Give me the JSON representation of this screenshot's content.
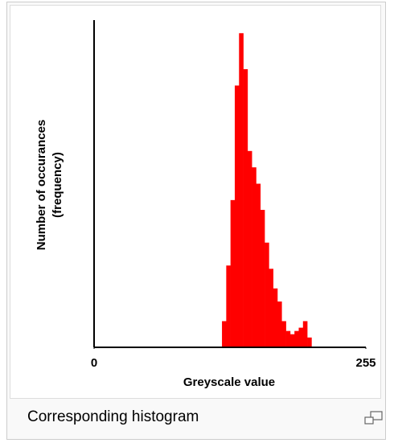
{
  "chart_data": {
    "type": "histogram",
    "xlabel": "Greyscale value",
    "ylabel": [
      "Number of occurances",
      "(frequency)"
    ],
    "bins": [
      120,
      124,
      128,
      132,
      136,
      140,
      144,
      148,
      152,
      156,
      160,
      164,
      168,
      172,
      176,
      180,
      184,
      188,
      192,
      196,
      200,
      204
    ],
    "values": [
      8,
      25,
      45,
      80,
      96,
      85,
      60,
      55,
      50,
      42,
      32,
      24,
      18,
      14,
      8,
      5,
      4,
      5,
      6,
      8,
      3
    ],
    "color": "#ff0000",
    "xlim": [
      0,
      255
    ],
    "xticks": [
      0,
      255
    ],
    "ylim": [
      0,
      100
    ],
    "grid": false
  },
  "caption": "Corresponding histogram"
}
